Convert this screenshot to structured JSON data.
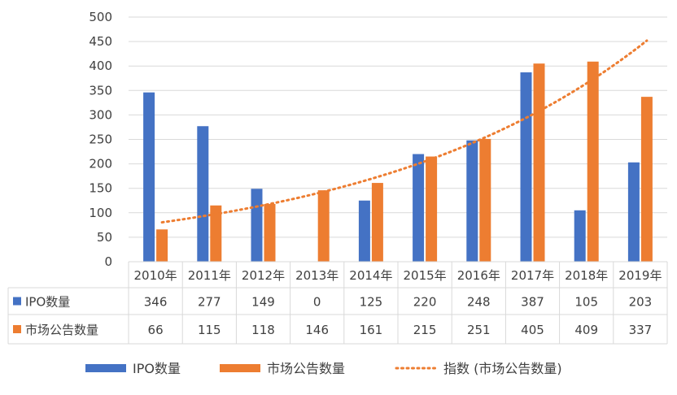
{
  "chart_data": {
    "type": "bar",
    "categories": [
      "2010年",
      "2011年",
      "2012年",
      "2013年",
      "2014年",
      "2015年",
      "2016年",
      "2017年",
      "2018年",
      "2019年"
    ],
    "series": [
      {
        "name": "IPO数量",
        "values": [
          346,
          277,
          149,
          0,
          125,
          220,
          248,
          387,
          105,
          203
        ],
        "color": "#4472C4"
      },
      {
        "name": "市场公告数量",
        "values": [
          66,
          115,
          118,
          146,
          161,
          215,
          251,
          405,
          409,
          337
        ],
        "color": "#ED7D31"
      }
    ],
    "trendline": {
      "name": "指数 (市场公告数量)",
      "type": "exponential",
      "color": "#ED7D31"
    },
    "ylim": [
      0,
      500
    ],
    "yticks": [
      0,
      50,
      100,
      150,
      200,
      250,
      300,
      350,
      400,
      450,
      500
    ],
    "grid": true,
    "data_table": true,
    "legend_position": "bottom"
  }
}
